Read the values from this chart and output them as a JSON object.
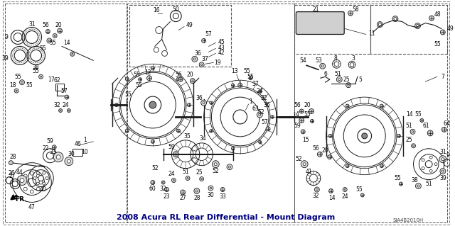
{
  "title": "2008 Acura RL Rear Differential - Mount Diagram",
  "background_color": "#ffffff",
  "border_color": "#000000",
  "diagram_note": "SJA4B2010H",
  "fr_label": "FR.",
  "line_color": "#1a1a1a",
  "figsize": [
    6.4,
    3.19
  ],
  "dpi": 100,
  "title_fontsize": 8,
  "title_color": "#000080",
  "image_bg": "#f5f5f0"
}
